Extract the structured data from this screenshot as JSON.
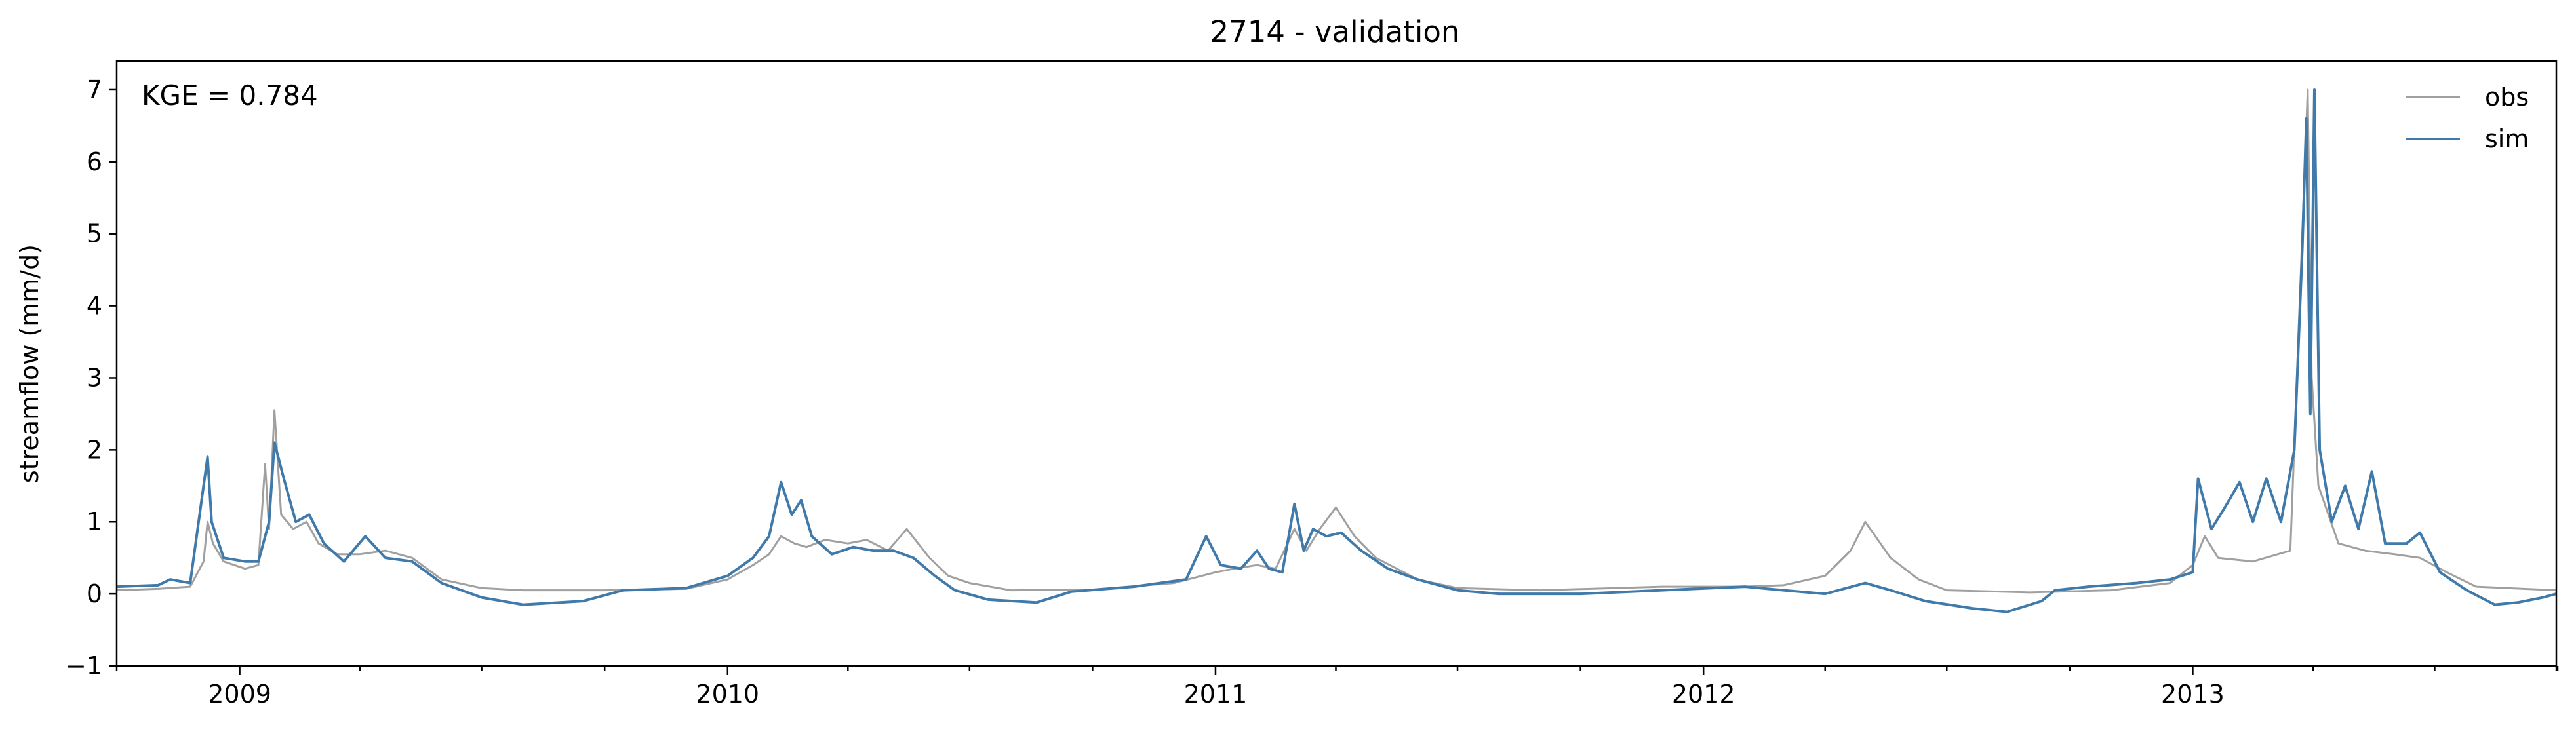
{
  "chart_data": {
    "type": "line",
    "title": "2714 - validation",
    "xlabel": "",
    "ylabel": "streamflow (mm/d)",
    "x_range": [
      "2008-10-01",
      "2013-09-30"
    ],
    "ylim": [
      -1,
      7.4
    ],
    "yticks": [
      -1,
      0,
      1,
      2,
      3,
      4,
      5,
      6,
      7
    ],
    "xticks": [
      {
        "label": "2009",
        "date": "2009-01-01"
      },
      {
        "label": "2010",
        "date": "2010-01-01"
      },
      {
        "label": "2011",
        "date": "2011-01-01"
      },
      {
        "label": "2012",
        "date": "2012-01-01"
      },
      {
        "label": "2013",
        "date": "2013-01-01"
      }
    ],
    "grid": false,
    "legend_position": "upper right",
    "annotation": "KGE = 0.784",
    "series": [
      {
        "name": "obs",
        "color": "#a0a0a0",
        "points": [
          [
            "2008-10-01",
            0.05
          ],
          [
            "2008-11-01",
            0.07
          ],
          [
            "2008-11-25",
            0.1
          ],
          [
            "2008-12-05",
            0.45
          ],
          [
            "2008-12-08",
            1.0
          ],
          [
            "2008-12-12",
            0.7
          ],
          [
            "2008-12-20",
            0.45
          ],
          [
            "2009-01-05",
            0.35
          ],
          [
            "2009-01-15",
            0.4
          ],
          [
            "2009-01-20",
            1.8
          ],
          [
            "2009-01-23",
            0.9
          ],
          [
            "2009-01-27",
            2.55
          ],
          [
            "2009-02-01",
            1.1
          ],
          [
            "2009-02-10",
            0.9
          ],
          [
            "2009-02-20",
            1.0
          ],
          [
            "2009-03-01",
            0.7
          ],
          [
            "2009-03-15",
            0.55
          ],
          [
            "2009-04-01",
            0.55
          ],
          [
            "2009-04-20",
            0.6
          ],
          [
            "2009-05-10",
            0.5
          ],
          [
            "2009-06-01",
            0.2
          ],
          [
            "2009-07-01",
            0.08
          ],
          [
            "2009-08-01",
            0.05
          ],
          [
            "2009-10-01",
            0.05
          ],
          [
            "2009-12-01",
            0.07
          ],
          [
            "2010-01-01",
            0.2
          ],
          [
            "2010-01-20",
            0.4
          ],
          [
            "2010-02-01",
            0.55
          ],
          [
            "2010-02-10",
            0.8
          ],
          [
            "2010-02-20",
            0.7
          ],
          [
            "2010-03-01",
            0.65
          ],
          [
            "2010-03-15",
            0.75
          ],
          [
            "2010-04-01",
            0.7
          ],
          [
            "2010-04-15",
            0.75
          ],
          [
            "2010-05-01",
            0.6
          ],
          [
            "2010-05-15",
            0.9
          ],
          [
            "2010-06-01",
            0.5
          ],
          [
            "2010-06-15",
            0.25
          ],
          [
            "2010-07-01",
            0.15
          ],
          [
            "2010-08-01",
            0.05
          ],
          [
            "2010-10-01",
            0.06
          ],
          [
            "2010-12-01",
            0.15
          ],
          [
            "2011-01-01",
            0.3
          ],
          [
            "2011-01-15",
            0.35
          ],
          [
            "2011-02-01",
            0.4
          ],
          [
            "2011-02-15",
            0.35
          ],
          [
            "2011-03-01",
            0.9
          ],
          [
            "2011-03-10",
            0.6
          ],
          [
            "2011-03-20",
            0.9
          ],
          [
            "2011-04-01",
            1.2
          ],
          [
            "2011-04-15",
            0.8
          ],
          [
            "2011-05-01",
            0.5
          ],
          [
            "2011-06-01",
            0.2
          ],
          [
            "2011-07-01",
            0.08
          ],
          [
            "2011-09-01",
            0.05
          ],
          [
            "2011-12-01",
            0.1
          ],
          [
            "2012-02-01",
            0.1
          ],
          [
            "2012-03-01",
            0.12
          ],
          [
            "2012-04-01",
            0.25
          ],
          [
            "2012-04-20",
            0.6
          ],
          [
            "2012-05-01",
            1.0
          ],
          [
            "2012-05-20",
            0.5
          ],
          [
            "2012-06-10",
            0.2
          ],
          [
            "2012-07-01",
            0.05
          ],
          [
            "2012-09-01",
            0.02
          ],
          [
            "2012-11-01",
            0.05
          ],
          [
            "2012-12-15",
            0.15
          ],
          [
            "2013-01-01",
            0.4
          ],
          [
            "2013-01-10",
            0.8
          ],
          [
            "2013-01-20",
            0.5
          ],
          [
            "2013-02-15",
            0.45
          ],
          [
            "2013-03-15",
            0.6
          ],
          [
            "2013-03-25",
            5.5
          ],
          [
            "2013-03-28",
            7.0
          ],
          [
            "2013-03-31",
            3.0
          ],
          [
            "2013-04-05",
            1.5
          ],
          [
            "2013-04-20",
            0.7
          ],
          [
            "2013-05-10",
            0.6
          ],
          [
            "2013-06-01",
            0.55
          ],
          [
            "2013-06-20",
            0.5
          ],
          [
            "2013-07-10",
            0.3
          ],
          [
            "2013-08-01",
            0.1
          ],
          [
            "2013-09-30",
            0.05
          ]
        ]
      },
      {
        "name": "sim",
        "color": "#3f7aab",
        "points": [
          [
            "2008-10-01",
            0.1
          ],
          [
            "2008-11-01",
            0.12
          ],
          [
            "2008-11-10",
            0.2
          ],
          [
            "2008-11-25",
            0.15
          ],
          [
            "2008-12-05",
            1.5
          ],
          [
            "2008-12-08",
            1.9
          ],
          [
            "2008-12-11",
            1.0
          ],
          [
            "2008-12-20",
            0.5
          ],
          [
            "2009-01-05",
            0.45
          ],
          [
            "2009-01-15",
            0.45
          ],
          [
            "2009-01-23",
            1.0
          ],
          [
            "2009-01-27",
            2.1
          ],
          [
            "2009-02-03",
            1.6
          ],
          [
            "2009-02-12",
            1.0
          ],
          [
            "2009-02-22",
            1.1
          ],
          [
            "2009-03-05",
            0.7
          ],
          [
            "2009-03-20",
            0.45
          ],
          [
            "2009-04-05",
            0.8
          ],
          [
            "2009-04-20",
            0.5
          ],
          [
            "2009-05-10",
            0.45
          ],
          [
            "2009-06-01",
            0.15
          ],
          [
            "2009-07-01",
            -0.05
          ],
          [
            "2009-08-01",
            -0.15
          ],
          [
            "2009-09-15",
            -0.1
          ],
          [
            "2009-10-15",
            0.05
          ],
          [
            "2009-12-01",
            0.08
          ],
          [
            "2010-01-01",
            0.25
          ],
          [
            "2010-01-20",
            0.5
          ],
          [
            "2010-02-01",
            0.8
          ],
          [
            "2010-02-10",
            1.55
          ],
          [
            "2010-02-18",
            1.1
          ],
          [
            "2010-02-25",
            1.3
          ],
          [
            "2010-03-05",
            0.8
          ],
          [
            "2010-03-20",
            0.55
          ],
          [
            "2010-04-05",
            0.65
          ],
          [
            "2010-04-20",
            0.6
          ],
          [
            "2010-05-05",
            0.6
          ],
          [
            "2010-05-20",
            0.5
          ],
          [
            "2010-06-05",
            0.25
          ],
          [
            "2010-06-20",
            0.05
          ],
          [
            "2010-07-15",
            -0.08
          ],
          [
            "2010-08-20",
            -0.12
          ],
          [
            "2010-09-15",
            0.03
          ],
          [
            "2010-11-01",
            0.1
          ],
          [
            "2010-12-10",
            0.2
          ],
          [
            "2010-12-25",
            0.8
          ],
          [
            "2011-01-05",
            0.4
          ],
          [
            "2011-01-20",
            0.35
          ],
          [
            "2011-02-01",
            0.6
          ],
          [
            "2011-02-10",
            0.35
          ],
          [
            "2011-02-20",
            0.3
          ],
          [
            "2011-03-01",
            1.25
          ],
          [
            "2011-03-08",
            0.6
          ],
          [
            "2011-03-15",
            0.9
          ],
          [
            "2011-03-25",
            0.8
          ],
          [
            "2011-04-05",
            0.85
          ],
          [
            "2011-04-20",
            0.6
          ],
          [
            "2011-05-10",
            0.35
          ],
          [
            "2011-06-01",
            0.2
          ],
          [
            "2011-07-01",
            0.05
          ],
          [
            "2011-08-01",
            0.0
          ],
          [
            "2011-10-01",
            0.0
          ],
          [
            "2011-12-01",
            0.05
          ],
          [
            "2012-02-01",
            0.1
          ],
          [
            "2012-03-01",
            0.05
          ],
          [
            "2012-04-01",
            0.0
          ],
          [
            "2012-05-01",
            0.15
          ],
          [
            "2012-05-20",
            0.05
          ],
          [
            "2012-06-15",
            -0.1
          ],
          [
            "2012-07-20",
            -0.2
          ],
          [
            "2012-08-15",
            -0.25
          ],
          [
            "2012-09-10",
            -0.1
          ],
          [
            "2012-09-20",
            0.05
          ],
          [
            "2012-10-15",
            0.1
          ],
          [
            "2012-11-20",
            0.15
          ],
          [
            "2012-12-15",
            0.2
          ],
          [
            "2013-01-01",
            0.3
          ],
          [
            "2013-01-05",
            1.6
          ],
          [
            "2013-01-15",
            0.9
          ],
          [
            "2013-01-25",
            1.2
          ],
          [
            "2013-02-05",
            1.55
          ],
          [
            "2013-02-15",
            1.0
          ],
          [
            "2013-02-25",
            1.6
          ],
          [
            "2013-03-08",
            1.0
          ],
          [
            "2013-03-18",
            2.0
          ],
          [
            "2013-03-24",
            4.8
          ],
          [
            "2013-03-27",
            6.6
          ],
          [
            "2013-03-30",
            2.5
          ],
          [
            "2013-04-02",
            7.0
          ],
          [
            "2013-04-06",
            2.0
          ],
          [
            "2013-04-15",
            1.0
          ],
          [
            "2013-04-25",
            1.5
          ],
          [
            "2013-05-05",
            0.9
          ],
          [
            "2013-05-15",
            1.7
          ],
          [
            "2013-05-25",
            0.7
          ],
          [
            "2013-06-10",
            0.7
          ],
          [
            "2013-06-20",
            0.85
          ],
          [
            "2013-07-05",
            0.3
          ],
          [
            "2013-07-25",
            0.05
          ],
          [
            "2013-08-15",
            -0.15
          ],
          [
            "2013-09-01",
            -0.12
          ],
          [
            "2013-09-20",
            -0.05
          ],
          [
            "2013-09-30",
            0.0
          ]
        ]
      }
    ]
  }
}
